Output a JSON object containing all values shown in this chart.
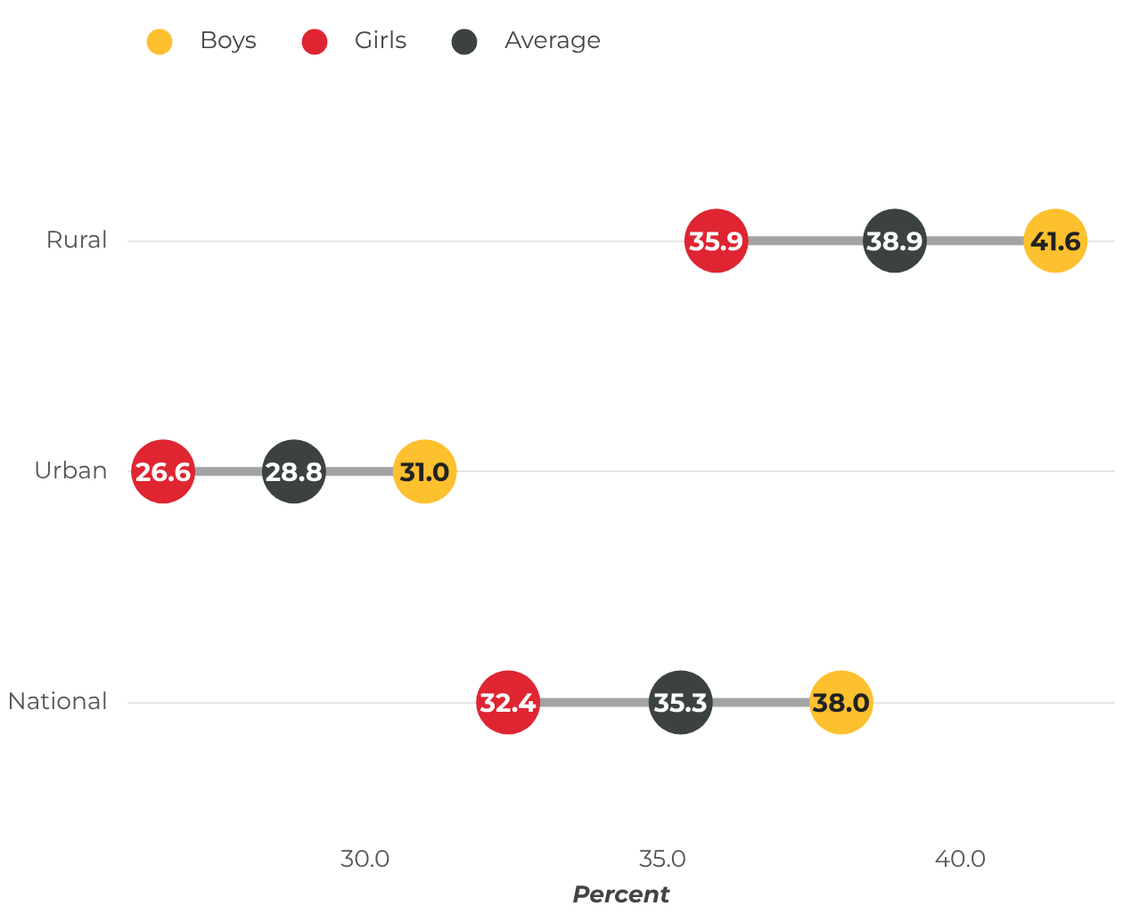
{
  "chart_data": {
    "type": "scatter",
    "orientation": "horizontal",
    "categories": [
      "Rural",
      "Urban",
      "National"
    ],
    "series": [
      {
        "name": "Boys",
        "color": "#fdc02f",
        "values": [
          41.6,
          31.0,
          38.0
        ],
        "value_labels": [
          "41.6",
          "31.0",
          "38.0"
        ]
      },
      {
        "name": "Girls",
        "color": "#df2531",
        "values": [
          35.9,
          26.6,
          32.4
        ]
      },
      {
        "name": "Average",
        "color": "#3b4240",
        "values": [
          38.9,
          28.8,
          35.3
        ]
      }
    ],
    "xlabel": "Percent",
    "xlim": [
      26.0,
      42.6
    ],
    "xticks": [
      {
        "value": 30,
        "label": "30.0"
      },
      {
        "value": 35,
        "label": "35.0"
      },
      {
        "value": 40,
        "label": "40.0"
      }
    ],
    "data_labels": true,
    "grid": "y",
    "legend": "top left",
    "marker": "circle"
  }
}
